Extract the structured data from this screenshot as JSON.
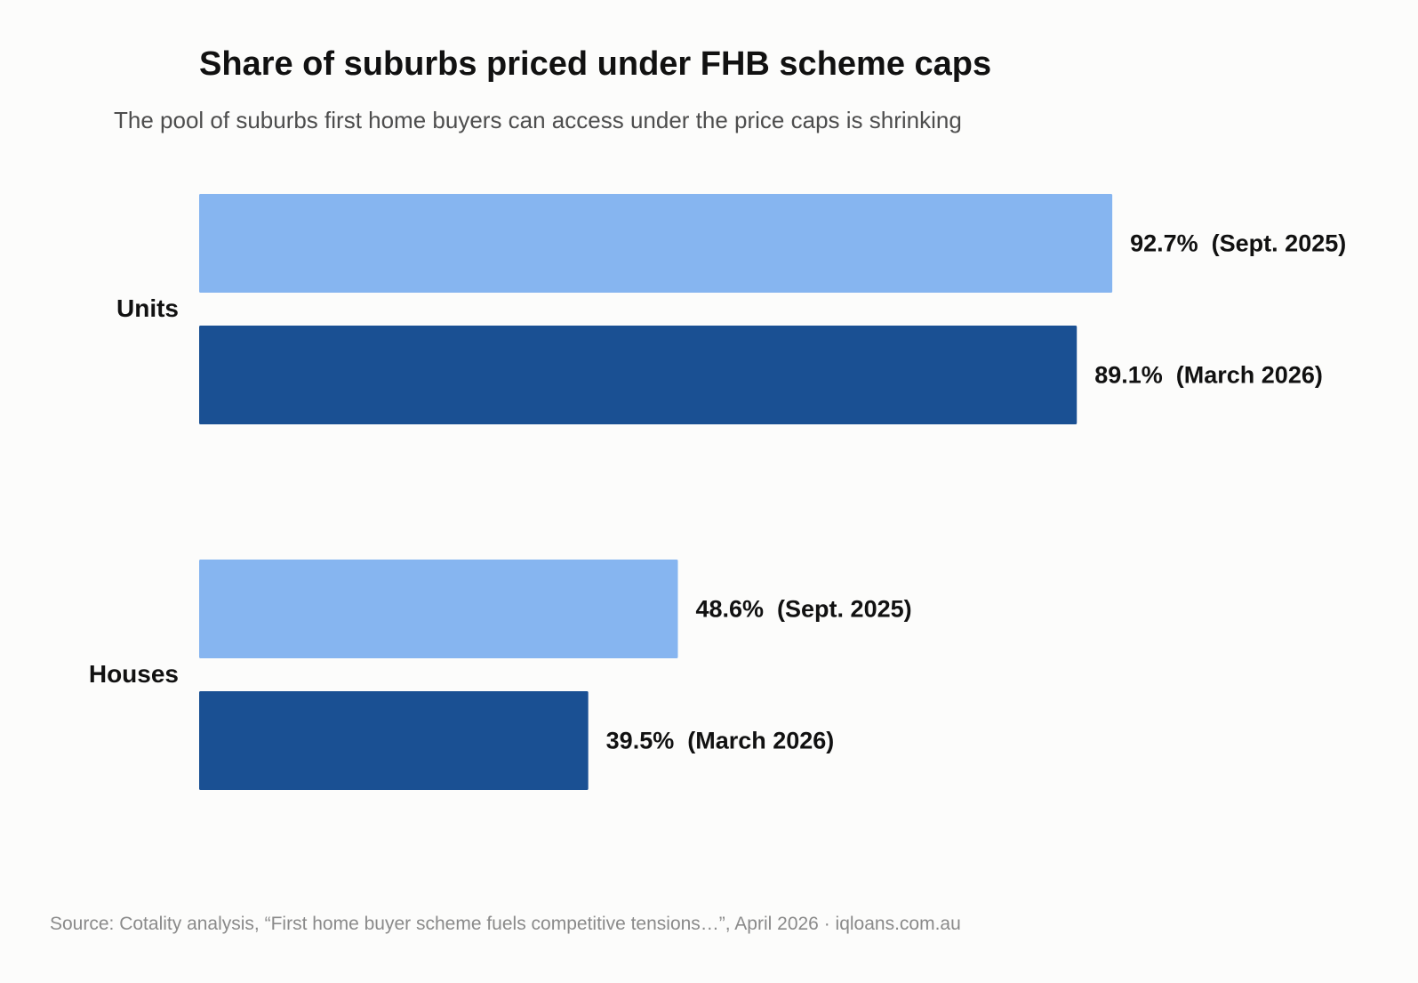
{
  "chart_data": {
    "type": "bar",
    "orientation": "horizontal",
    "title": "Share of suburbs priced under FHB scheme caps",
    "subtitle": "The pool of suburbs first home buyers can access under the price caps is shrinking",
    "categories": [
      "Units",
      "Houses"
    ],
    "series": [
      {
        "name": "Sept. 2025",
        "color": "#86b5f0",
        "values": [
          92.7,
          48.6
        ],
        "labels": [
          "92.7%  (Sept. 2025)",
          "48.6%  (Sept. 2025)"
        ]
      },
      {
        "name": "March 2026",
        "color": "#1a5093",
        "values": [
          89.1,
          39.5
        ],
        "labels": [
          "89.1%  (March 2026)",
          "39.5%  (March 2026)"
        ]
      }
    ],
    "unit": "%",
    "xlim": [
      0,
      100
    ],
    "grid": false,
    "legend": "none",
    "source": "Source: Cotality analysis, “First home buyer scheme fuels competitive tensions…”, April 2026  ·  iqloans.com.au"
  }
}
